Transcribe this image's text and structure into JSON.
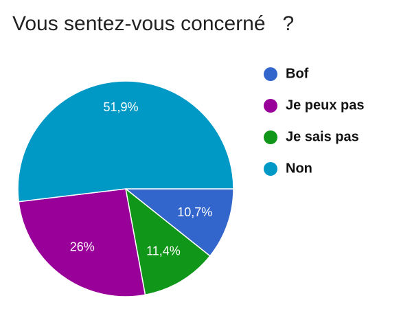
{
  "chart_data": {
    "type": "pie",
    "title": "Vous sentez-vous concerné   ?",
    "categories": [
      "Bof",
      "Je peux pas",
      "Je sais pas",
      "Non"
    ],
    "values": [
      10.7,
      26,
      11.4,
      51.9
    ],
    "value_labels": [
      "10,7%",
      "26%",
      "11,4%",
      "51,9%"
    ],
    "colors": [
      "#3366cc",
      "#990099",
      "#109618",
      "#0099c6"
    ],
    "slice_order": [
      0,
      2,
      1,
      3
    ],
    "legend": "right"
  }
}
